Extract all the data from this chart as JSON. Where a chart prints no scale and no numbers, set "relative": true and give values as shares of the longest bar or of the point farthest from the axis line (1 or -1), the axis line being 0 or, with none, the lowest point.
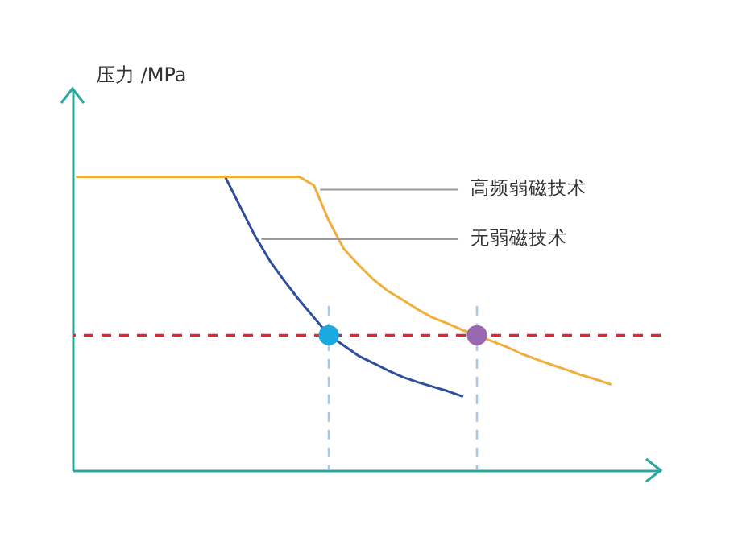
{
  "chart_data": {
    "type": "line",
    "relative": true,
    "ylabel": "压力 /MPa",
    "categories": [
      null,
      null,
      null,
      null,
      null,
      null,
      null,
      null,
      null,
      null,
      null,
      null,
      null,
      null,
      null,
      null,
      null,
      null,
      null,
      null,
      null,
      null,
      null,
      null,
      null,
      null,
      null,
      null,
      null,
      null,
      null,
      null,
      null,
      null,
      null,
      null,
      null
    ],
    "series": [
      {
        "color": "#f2ae3d",
        "values": [
          1,
          1,
          1,
          1,
          1,
          1,
          1,
          1,
          1,
          1,
          1,
          1,
          1,
          1,
          1,
          1,
          0.97,
          0.85,
          0.755,
          0.7,
          0.65,
          0.61,
          0.58,
          0.548,
          0.52,
          0.5,
          0.478,
          0.46,
          0.44,
          0.42,
          0.397,
          0.378,
          0.36,
          0.343,
          0.325,
          0.31,
          0.293
        ]
      },
      {
        "color": "#2f4f9e",
        "values": [
          null,
          null,
          null,
          null,
          null,
          null,
          null,
          null,
          null,
          null,
          1,
          0.9,
          0.8,
          0.715,
          0.645,
          0.58,
          0.52,
          0.46,
          0.425,
          0.39,
          0.365,
          0.34,
          0.317,
          0.3,
          0.285,
          0.27,
          0.252,
          null,
          null,
          null,
          null,
          null,
          null,
          null,
          null,
          null,
          null
        ]
      }
    ],
    "ref_lines": [
      {
        "axis": "y",
        "value": 0.46,
        "color": "#e5242b",
        "line_style": "dashed"
      }
    ],
    "annotations": [
      "高频弱磁技术",
      "无弱磁技术"
    ]
  }
}
